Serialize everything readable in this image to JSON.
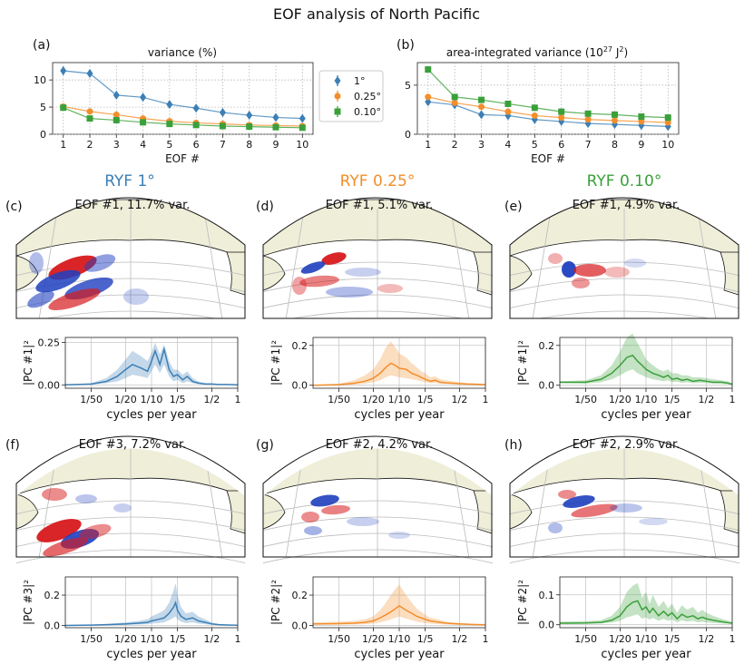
{
  "title": "EOF analysis of North Pacific",
  "colors": {
    "c1": "#3b7fb6",
    "c025": "#f28e2b",
    "c010": "#3aa03a",
    "land": "#efeed9",
    "pos": "#d7191c",
    "neg": "#1f3fbf"
  },
  "column_titles": [
    "RYF 1°",
    "RYF 0.25°",
    "RYF 0.10°"
  ],
  "legend": {
    "entries": [
      "1°",
      "0.25°",
      "0.10°"
    ]
  },
  "map_panels": [
    {
      "label": "(c)",
      "title": "EOF #1, 11.7% var."
    },
    {
      "label": "(d)",
      "title": "EOF #1, 5.1% var."
    },
    {
      "label": "(e)",
      "title": "EOF #1, 4.9% var."
    },
    {
      "label": "(f)",
      "title": "EOF #3, 7.2% var."
    },
    {
      "label": "(g)",
      "title": "EOF #2, 4.2% var."
    },
    {
      "label": "(h)",
      "title": "EOF #2, 2.9% var."
    }
  ],
  "chart_data": [
    {
      "id": "a",
      "label": "(a)",
      "type": "line",
      "title": "variance (%)",
      "xlabel": "EOF #",
      "ylabel": "",
      "x": [
        1,
        2,
        3,
        4,
        5,
        6,
        7,
        8,
        9,
        10
      ],
      "xlim": [
        0.6,
        10.4
      ],
      "ylim": [
        0,
        13.2
      ],
      "yticks": [
        0,
        5,
        10
      ],
      "series": [
        {
          "name": "1°",
          "color": "#3b7fb6",
          "marker": "diamond",
          "values": [
            11.7,
            11.2,
            7.2,
            6.8,
            5.5,
            4.8,
            4.0,
            3.5,
            3.1,
            2.9
          ],
          "err": [
            0.8,
            0.7,
            0.6,
            0.5,
            0.5,
            0.4,
            0.4,
            0.3,
            0.3,
            0.3
          ]
        },
        {
          "name": "0.25°",
          "color": "#f28e2b",
          "marker": "circle",
          "values": [
            5.1,
            4.2,
            3.6,
            2.9,
            2.4,
            2.1,
            1.9,
            1.7,
            1.6,
            1.5
          ],
          "err": [
            0.3,
            0.3,
            0.3,
            0.2,
            0.2,
            0.2,
            0.2,
            0.2,
            0.2,
            0.2
          ]
        },
        {
          "name": "0.10°",
          "color": "#3aa03a",
          "marker": "square",
          "values": [
            4.9,
            2.9,
            2.6,
            2.2,
            1.9,
            1.7,
            1.5,
            1.4,
            1.3,
            1.2
          ],
          "err": [
            0.3,
            0.2,
            0.2,
            0.2,
            0.2,
            0.2,
            0.2,
            0.2,
            0.2,
            0.2
          ]
        }
      ]
    },
    {
      "id": "b",
      "label": "(b)",
      "type": "line",
      "title": "area-integrated variance (10",
      "title_sup": "27",
      "title_tail": " J",
      "title_sup2": "2",
      "title_end": ")",
      "xlabel": "EOF #",
      "ylabel": "",
      "x": [
        1,
        2,
        3,
        4,
        5,
        6,
        7,
        8,
        9,
        10
      ],
      "xlim": [
        0.6,
        10.4
      ],
      "ylim": [
        0,
        7.3
      ],
      "yticks": [
        0,
        5
      ],
      "series": [
        {
          "name": "1°",
          "color": "#3b7fb6",
          "marker": "diamond",
          "values": [
            3.3,
            3.0,
            2.0,
            1.9,
            1.5,
            1.3,
            1.1,
            1.0,
            0.9,
            0.8
          ],
          "err": [
            0.3,
            0.3,
            0.2,
            0.2,
            0.2,
            0.2,
            0.1,
            0.1,
            0.1,
            0.1
          ]
        },
        {
          "name": "0.25°",
          "color": "#f28e2b",
          "marker": "circle",
          "values": [
            3.8,
            3.2,
            2.8,
            2.3,
            1.9,
            1.7,
            1.5,
            1.4,
            1.3,
            1.2
          ],
          "err": [
            0.3,
            0.3,
            0.2,
            0.2,
            0.2,
            0.2,
            0.2,
            0.1,
            0.1,
            0.1
          ]
        },
        {
          "name": "0.10°",
          "color": "#3aa03a",
          "marker": "square",
          "values": [
            6.6,
            3.8,
            3.5,
            3.1,
            2.7,
            2.3,
            2.1,
            2.0,
            1.8,
            1.7
          ],
          "err": [
            0.3,
            0.3,
            0.3,
            0.2,
            0.2,
            0.2,
            0.2,
            0.2,
            0.2,
            0.2
          ]
        }
      ]
    },
    {
      "id": "c",
      "type": "line",
      "ylabel": "|PC #1|²",
      "xlabel": "cycles per year",
      "xscale": "log",
      "xlim": [
        0.01,
        1.0
      ],
      "ylim": [
        -0.02,
        0.28
      ],
      "yticks": [
        0.0,
        0.25
      ],
      "xticks": [
        0.02,
        0.05,
        0.1,
        0.2,
        0.5,
        1.0
      ],
      "xticklabels": [
        "1/50",
        "1/20",
        "1/10",
        "1/5",
        "1/2",
        "1"
      ],
      "color": "#3b7fb6",
      "x": [
        0.01,
        0.02,
        0.03,
        0.04,
        0.05,
        0.06,
        0.075,
        0.09,
        0.1,
        0.11,
        0.125,
        0.14,
        0.16,
        0.18,
        0.2,
        0.23,
        0.26,
        0.3,
        0.35,
        0.42,
        0.5,
        0.6,
        0.75,
        0.9,
        1.0
      ],
      "y": [
        0.0,
        0.005,
        0.02,
        0.05,
        0.09,
        0.12,
        0.1,
        0.08,
        0.14,
        0.2,
        0.12,
        0.21,
        0.09,
        0.05,
        0.06,
        0.03,
        0.05,
        0.02,
        0.01,
        0.005,
        0.005,
        0.002,
        0.002,
        0.001,
        0.0
      ],
      "upper": [
        0.0,
        0.01,
        0.04,
        0.09,
        0.15,
        0.2,
        0.17,
        0.14,
        0.19,
        0.25,
        0.18,
        0.24,
        0.14,
        0.09,
        0.09,
        0.06,
        0.08,
        0.04,
        0.02,
        0.01,
        0.01,
        0.005,
        0.004,
        0.002,
        0.0
      ],
      "lower": [
        0.0,
        0.002,
        0.01,
        0.02,
        0.04,
        0.06,
        0.05,
        0.04,
        0.08,
        0.12,
        0.07,
        0.12,
        0.05,
        0.02,
        0.03,
        0.01,
        0.02,
        0.01,
        0.005,
        0.002,
        0.002,
        0.001,
        0.001,
        0.0,
        0.0
      ]
    },
    {
      "id": "d",
      "type": "line",
      "ylabel": "|PC #1|²",
      "xlabel": "cycles per year",
      "xscale": "log",
      "xlim": [
        0.01,
        1.0
      ],
      "ylim": [
        -0.015,
        0.24
      ],
      "yticks": [
        0.0,
        0.2
      ],
      "xticks": [
        0.02,
        0.05,
        0.1,
        0.2,
        0.5,
        1.0
      ],
      "xticklabels": [
        "1/50",
        "1/20",
        "1/10",
        "1/5",
        "1/2",
        "1"
      ],
      "color": "#f28e2b",
      "x": [
        0.01,
        0.02,
        0.03,
        0.04,
        0.05,
        0.06,
        0.07,
        0.08,
        0.09,
        0.1,
        0.12,
        0.14,
        0.16,
        0.18,
        0.2,
        0.23,
        0.26,
        0.3,
        0.35,
        0.42,
        0.5,
        0.6,
        0.75,
        0.9,
        1.0
      ],
      "y": [
        0.0,
        0.003,
        0.01,
        0.02,
        0.035,
        0.06,
        0.09,
        0.11,
        0.1,
        0.085,
        0.08,
        0.06,
        0.05,
        0.04,
        0.03,
        0.02,
        0.025,
        0.015,
        0.012,
        0.01,
        0.008,
        0.006,
        0.005,
        0.004,
        0.003
      ],
      "upper": [
        0.0,
        0.008,
        0.025,
        0.05,
        0.08,
        0.13,
        0.19,
        0.22,
        0.19,
        0.16,
        0.14,
        0.11,
        0.09,
        0.07,
        0.06,
        0.04,
        0.045,
        0.03,
        0.025,
        0.02,
        0.015,
        0.012,
        0.01,
        0.008,
        0.006
      ],
      "lower": [
        0.0,
        0.001,
        0.003,
        0.008,
        0.015,
        0.025,
        0.04,
        0.05,
        0.045,
        0.04,
        0.035,
        0.03,
        0.025,
        0.02,
        0.015,
        0.01,
        0.012,
        0.007,
        0.006,
        0.005,
        0.004,
        0.003,
        0.002,
        0.002,
        0.001
      ]
    },
    {
      "id": "e",
      "type": "line",
      "ylabel": "|PC #1|²",
      "xlabel": "cycles per year",
      "xscale": "log",
      "xlim": [
        0.01,
        1.0
      ],
      "ylim": [
        -0.015,
        0.24
      ],
      "yticks": [
        0.0,
        0.2
      ],
      "xticks": [
        0.02,
        0.05,
        0.1,
        0.2,
        0.5,
        1.0
      ],
      "xticklabels": [
        "1/50",
        "1/20",
        "1/10",
        "1/5",
        "1/2",
        "1"
      ],
      "color": "#3aa03a",
      "x": [
        0.01,
        0.02,
        0.03,
        0.04,
        0.05,
        0.06,
        0.07,
        0.08,
        0.09,
        0.1,
        0.12,
        0.14,
        0.16,
        0.18,
        0.2,
        0.23,
        0.26,
        0.3,
        0.35,
        0.42,
        0.5,
        0.6,
        0.75,
        0.9,
        1.0
      ],
      "y": [
        0.015,
        0.015,
        0.03,
        0.06,
        0.1,
        0.14,
        0.15,
        0.12,
        0.1,
        0.08,
        0.06,
        0.05,
        0.04,
        0.05,
        0.03,
        0.035,
        0.025,
        0.03,
        0.02,
        0.025,
        0.02,
        0.015,
        0.015,
        0.01,
        0.005
      ],
      "upper": [
        0.02,
        0.025,
        0.05,
        0.1,
        0.17,
        0.24,
        0.26,
        0.21,
        0.17,
        0.13,
        0.1,
        0.08,
        0.07,
        0.08,
        0.06,
        0.06,
        0.05,
        0.05,
        0.04,
        0.04,
        0.035,
        0.03,
        0.025,
        0.02,
        0.01
      ],
      "lower": [
        0.01,
        0.008,
        0.015,
        0.03,
        0.05,
        0.07,
        0.08,
        0.06,
        0.05,
        0.04,
        0.03,
        0.025,
        0.02,
        0.025,
        0.015,
        0.018,
        0.012,
        0.015,
        0.01,
        0.012,
        0.01,
        0.008,
        0.007,
        0.005,
        0.002
      ]
    },
    {
      "id": "f",
      "type": "line",
      "ylabel": "|PC #3|²",
      "xlabel": "cycles per year",
      "xscale": "log",
      "xlim": [
        0.01,
        1.0
      ],
      "ylim": [
        -0.015,
        0.32
      ],
      "yticks": [
        0.0,
        0.2
      ],
      "xticks": [
        0.02,
        0.05,
        0.1,
        0.2,
        0.5,
        1.0
      ],
      "xticklabels": [
        "1/50",
        "1/20",
        "1/10",
        "1/5",
        "1/2",
        "1"
      ],
      "color": "#3b7fb6",
      "x": [
        0.01,
        0.02,
        0.03,
        0.05,
        0.07,
        0.09,
        0.1,
        0.12,
        0.14,
        0.16,
        0.18,
        0.19,
        0.2,
        0.22,
        0.25,
        0.3,
        0.35,
        0.42,
        0.5,
        0.6,
        0.75,
        0.9,
        1.0
      ],
      "y": [
        0.0,
        0.002,
        0.005,
        0.01,
        0.015,
        0.02,
        0.03,
        0.04,
        0.05,
        0.08,
        0.12,
        0.15,
        0.1,
        0.06,
        0.04,
        0.05,
        0.03,
        0.02,
        0.01,
        0.005,
        0.003,
        0.002,
        0.001
      ],
      "upper": [
        0.0,
        0.005,
        0.01,
        0.02,
        0.03,
        0.04,
        0.06,
        0.08,
        0.1,
        0.15,
        0.23,
        0.28,
        0.2,
        0.12,
        0.08,
        0.09,
        0.06,
        0.04,
        0.02,
        0.01,
        0.006,
        0.004,
        0.002
      ],
      "lower": [
        0.0,
        0.001,
        0.002,
        0.004,
        0.006,
        0.008,
        0.012,
        0.016,
        0.02,
        0.035,
        0.05,
        0.06,
        0.04,
        0.025,
        0.016,
        0.02,
        0.012,
        0.008,
        0.004,
        0.002,
        0.001,
        0.001,
        0.0
      ]
    },
    {
      "id": "g",
      "type": "line",
      "ylabel": "|PC #2|²",
      "xlabel": "cycles per year",
      "xscale": "log",
      "xlim": [
        0.01,
        1.0
      ],
      "ylim": [
        -0.015,
        0.32
      ],
      "yticks": [
        0.0,
        0.2
      ],
      "xticks": [
        0.02,
        0.05,
        0.1,
        0.2,
        0.5,
        1.0
      ],
      "xticklabels": [
        "1/50",
        "1/20",
        "1/10",
        "1/5",
        "1/2",
        "1"
      ],
      "color": "#f28e2b",
      "x": [
        0.01,
        0.02,
        0.03,
        0.04,
        0.05,
        0.06,
        0.07,
        0.08,
        0.09,
        0.1,
        0.12,
        0.14,
        0.16,
        0.18,
        0.2,
        0.23,
        0.26,
        0.3,
        0.35,
        0.42,
        0.5,
        0.6,
        0.75,
        0.9,
        1.0
      ],
      "y": [
        0.01,
        0.012,
        0.015,
        0.02,
        0.03,
        0.05,
        0.07,
        0.09,
        0.11,
        0.13,
        0.1,
        0.08,
        0.06,
        0.05,
        0.04,
        0.03,
        0.025,
        0.02,
        0.015,
        0.012,
        0.01,
        0.008,
        0.006,
        0.005,
        0.004
      ],
      "upper": [
        0.02,
        0.025,
        0.03,
        0.04,
        0.06,
        0.1,
        0.15,
        0.2,
        0.24,
        0.27,
        0.2,
        0.15,
        0.11,
        0.09,
        0.07,
        0.05,
        0.045,
        0.035,
        0.025,
        0.02,
        0.017,
        0.013,
        0.01,
        0.008,
        0.007
      ],
      "lower": [
        0.005,
        0.005,
        0.006,
        0.008,
        0.012,
        0.02,
        0.03,
        0.04,
        0.05,
        0.06,
        0.045,
        0.035,
        0.025,
        0.02,
        0.016,
        0.012,
        0.01,
        0.008,
        0.006,
        0.005,
        0.004,
        0.003,
        0.002,
        0.002,
        0.001
      ]
    },
    {
      "id": "h",
      "type": "line",
      "ylabel": "|PC #2|²",
      "xlabel": "cycles per year",
      "xscale": "log",
      "xlim": [
        0.01,
        1.0
      ],
      "ylim": [
        -0.01,
        0.16
      ],
      "yticks": [
        0.0,
        0.1
      ],
      "xticks": [
        0.02,
        0.05,
        0.1,
        0.2,
        0.5,
        1.0
      ],
      "xticklabels": [
        "1/50",
        "1/20",
        "1/10",
        "1/5",
        "1/2",
        "1"
      ],
      "color": "#3aa03a",
      "x": [
        0.01,
        0.02,
        0.03,
        0.04,
        0.05,
        0.06,
        0.07,
        0.08,
        0.09,
        0.1,
        0.11,
        0.12,
        0.14,
        0.16,
        0.18,
        0.2,
        0.23,
        0.26,
        0.3,
        0.35,
        0.4,
        0.45,
        0.5,
        0.6,
        0.75,
        1.0
      ],
      "y": [
        0.005,
        0.006,
        0.008,
        0.015,
        0.03,
        0.06,
        0.075,
        0.08,
        0.05,
        0.06,
        0.04,
        0.055,
        0.03,
        0.045,
        0.03,
        0.04,
        0.02,
        0.035,
        0.025,
        0.03,
        0.02,
        0.025,
        0.02,
        0.015,
        0.01,
        0.005
      ],
      "upper": [
        0.01,
        0.012,
        0.015,
        0.03,
        0.06,
        0.11,
        0.13,
        0.14,
        0.09,
        0.11,
        0.07,
        0.1,
        0.06,
        0.08,
        0.055,
        0.07,
        0.04,
        0.065,
        0.05,
        0.06,
        0.04,
        0.05,
        0.04,
        0.03,
        0.02,
        0.01
      ],
      "lower": [
        0.002,
        0.003,
        0.004,
        0.007,
        0.013,
        0.025,
        0.03,
        0.035,
        0.02,
        0.025,
        0.017,
        0.023,
        0.013,
        0.02,
        0.013,
        0.017,
        0.008,
        0.015,
        0.01,
        0.013,
        0.008,
        0.01,
        0.008,
        0.006,
        0.004,
        0.002
      ]
    }
  ]
}
